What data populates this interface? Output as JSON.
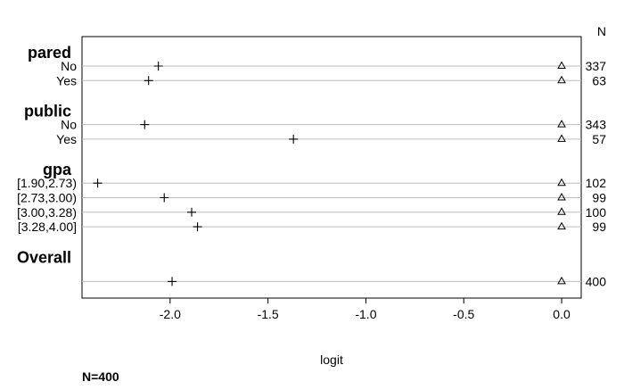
{
  "chart_data": {
    "type": "scatter",
    "xlabel": "logit",
    "xlim": [
      -2.45,
      0.1
    ],
    "xticks": [
      -2.0,
      -1.5,
      -1.0,
      -0.5,
      0.0
    ],
    "xtick_labels": [
      "-2.0",
      "-1.5",
      "-1.0",
      "-0.5",
      "0.0"
    ],
    "count_header": "N",
    "footnote": "N=400",
    "groups": [
      {
        "label": "pared",
        "rows": [
          {
            "label": "No",
            "cross": -2.06,
            "triangle": 0.0,
            "n": "337"
          },
          {
            "label": "Yes",
            "cross": -2.11,
            "triangle": 0.0,
            "n": "63"
          }
        ]
      },
      {
        "label": "public",
        "rows": [
          {
            "label": "No",
            "cross": -2.13,
            "triangle": 0.0,
            "n": "343"
          },
          {
            "label": "Yes",
            "cross": -1.37,
            "triangle": 0.0,
            "n": "57"
          }
        ]
      },
      {
        "label": "gpa",
        "rows": [
          {
            "label": "[1.90,2.73)",
            "cross": -2.37,
            "triangle": 0.0,
            "n": "102"
          },
          {
            "label": "[2.73,3.00)",
            "cross": -2.03,
            "triangle": 0.0,
            "n": "99"
          },
          {
            "label": "[3.00,3.28)",
            "cross": -1.89,
            "triangle": 0.0,
            "n": "100"
          },
          {
            "label": "[3.28,4.00]",
            "cross": -1.86,
            "triangle": 0.0,
            "n": "99"
          }
        ]
      },
      {
        "label": "Overall",
        "rows": [
          {
            "label": "",
            "cross": -1.99,
            "triangle": 0.0,
            "n": "400"
          }
        ]
      }
    ]
  }
}
